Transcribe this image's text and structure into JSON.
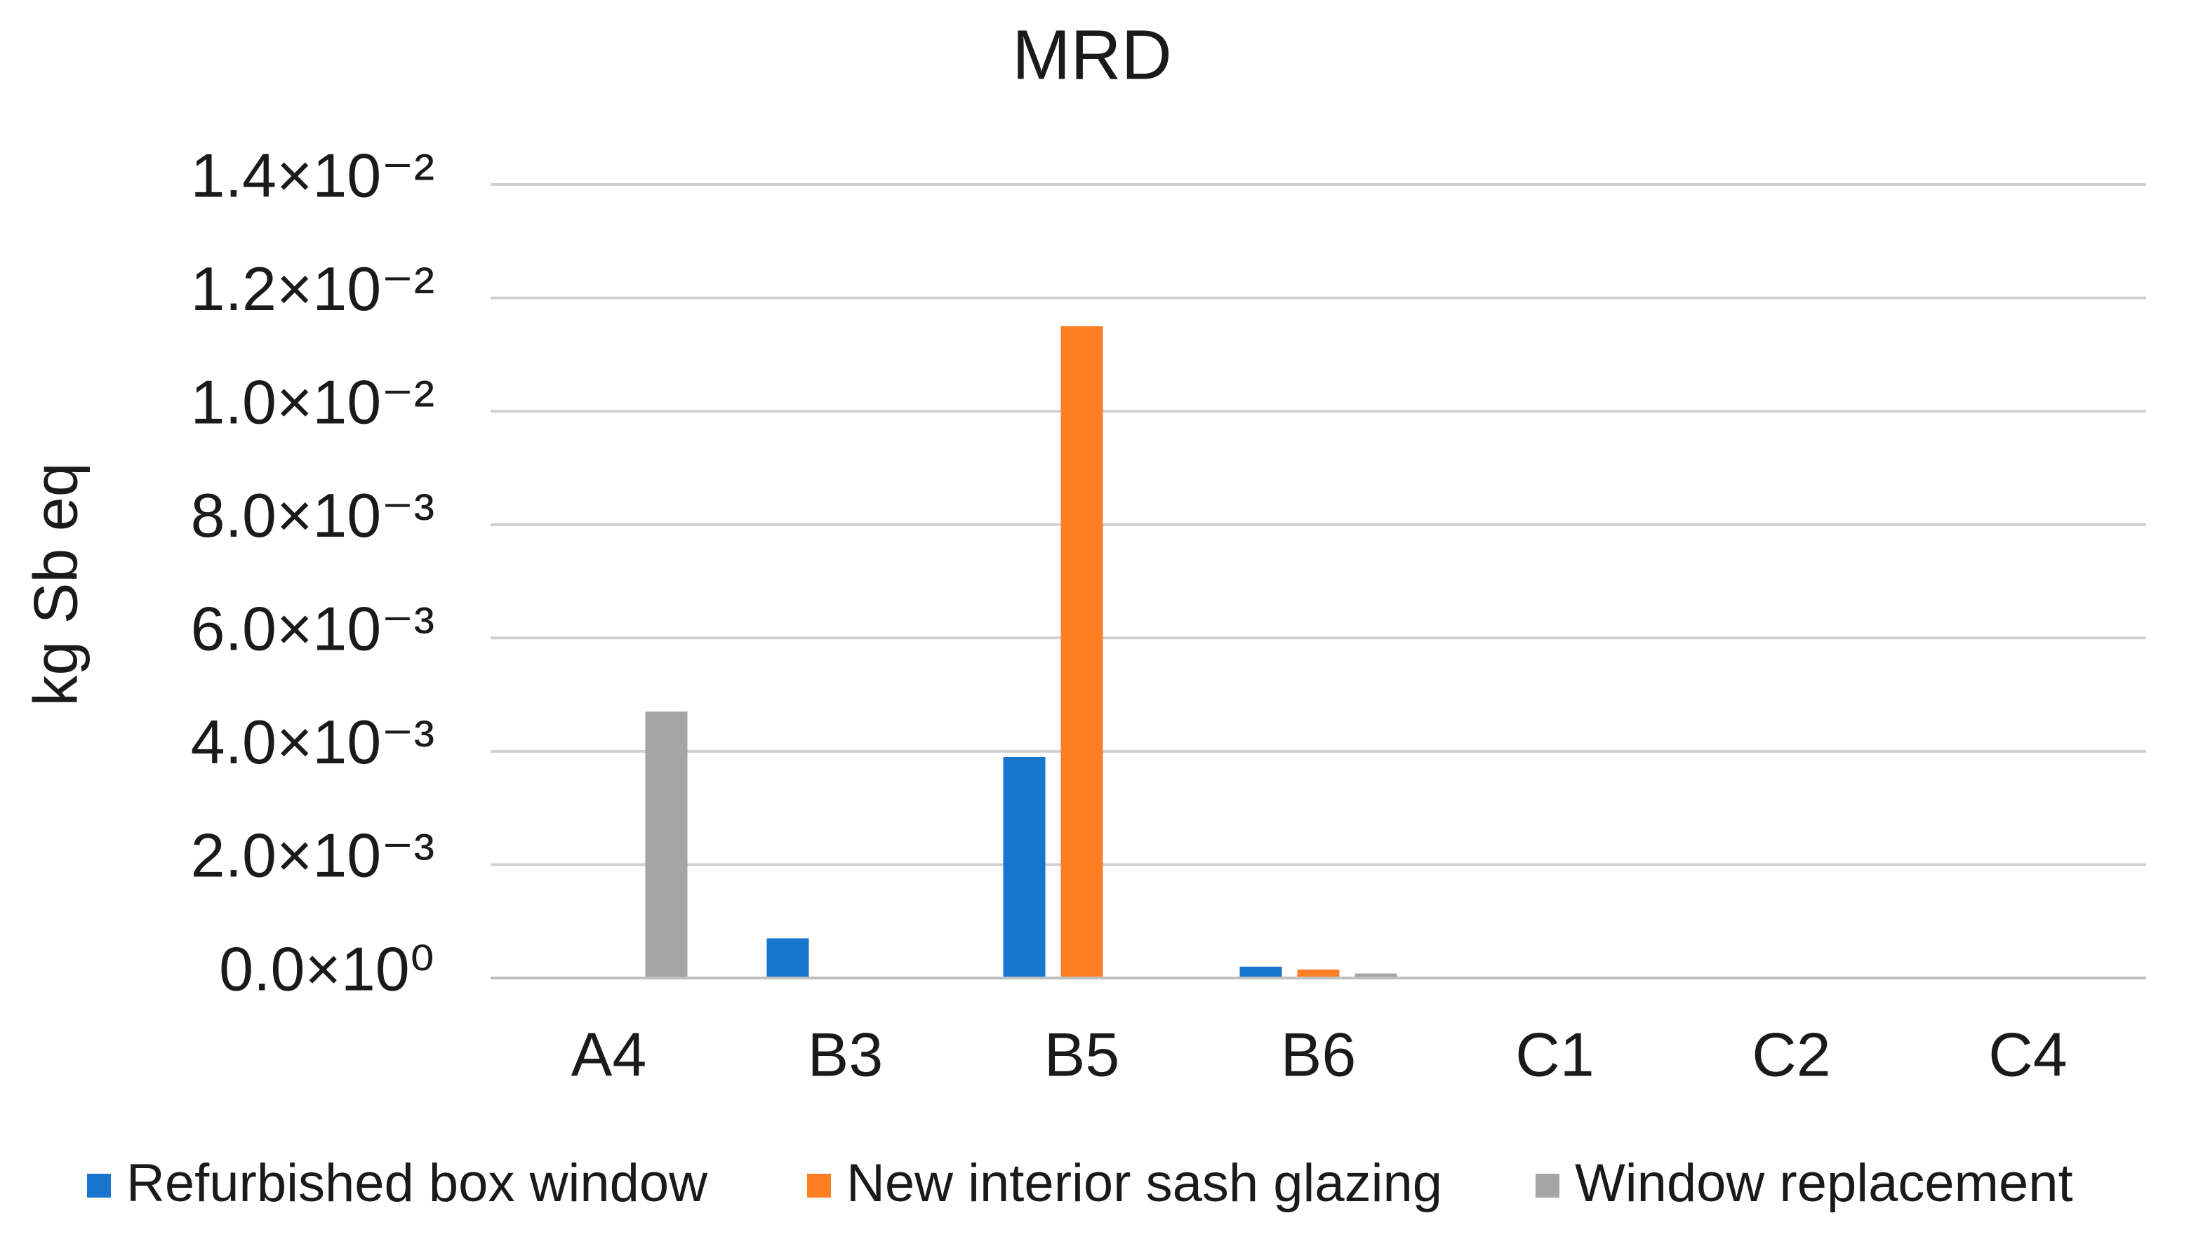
{
  "chart_data": {
    "type": "bar",
    "title": "MRD",
    "y_label": "kg Sb eq",
    "categories": [
      "A4",
      "B3",
      "B5",
      "B6",
      "C1",
      "C2",
      "C4"
    ],
    "series": [
      {
        "name": "Refurbished box window",
        "color": "#1874cd",
        "values": [
          0,
          0.0007,
          0.0039,
          0.0002,
          0,
          0,
          0
        ]
      },
      {
        "name": "New interior sash glazing",
        "color": "#ff7f27",
        "values": [
          0,
          0,
          0.0115,
          0.00015,
          0,
          0,
          0
        ]
      },
      {
        "name": "Window replacement",
        "color": "#a5a5a5",
        "values": [
          0.0047,
          0,
          0,
          8e-05,
          0,
          0,
          0
        ]
      }
    ],
    "ylim": [
      0,
      0.014
    ],
    "yticks": [
      {
        "value": 0,
        "label": "0.0×10⁰"
      },
      {
        "value": 0.002,
        "label": "2.0×10⁻³"
      },
      {
        "value": 0.004,
        "label": "4.0×10⁻³"
      },
      {
        "value": 0.006,
        "label": "6.0×10⁻³"
      },
      {
        "value": 0.008,
        "label": "8.0×10⁻³"
      },
      {
        "value": 0.01,
        "label": "1.0×10⁻²"
      },
      {
        "value": 0.012,
        "label": "1.2×10⁻²"
      },
      {
        "value": 0.014,
        "label": "1.4×10⁻²"
      }
    ],
    "grid": true,
    "legend": "bottom"
  }
}
